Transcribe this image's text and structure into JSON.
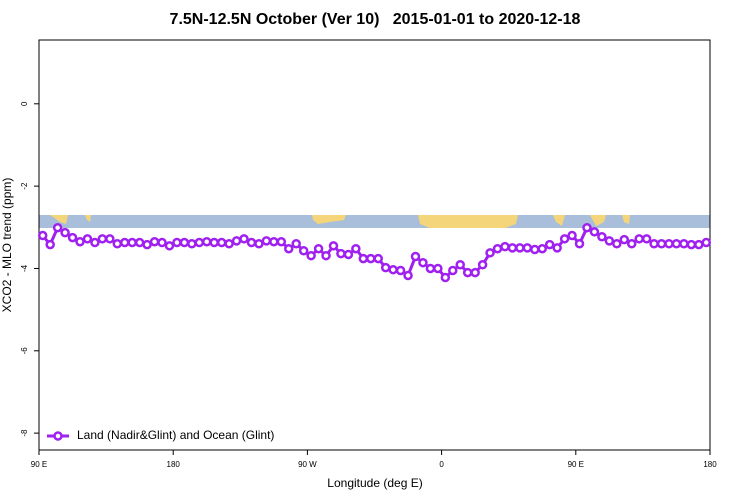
{
  "chart_data": {
    "type": "line",
    "title": "7.5N-12.5N October (Ver 10)   2015-01-01 to 2020-12-18",
    "x_label": "Longitude (deg E)",
    "y_label": "XCO2 - MLO trend (ppm)",
    "xlim": [
      90,
      540
    ],
    "ylim": [
      -8.41,
      1.55
    ],
    "xticks": [
      {
        "value": 90,
        "label": "90 E"
      },
      180,
      {
        "value": 270,
        "label": "90 W"
      },
      {
        "value": 360,
        "label": "0"
      },
      {
        "value": 450,
        "label": "90 E"
      },
      {
        "value": 540,
        "label": "180"
      }
    ],
    "yticks": [
      0,
      -2,
      -4,
      -6,
      -8
    ],
    "legend": "bottom-left",
    "x": [
      92.5,
      97.5,
      102.5,
      107.5,
      112.5,
      117.5,
      122.5,
      127.5,
      132.5,
      137.5,
      142.5,
      147.5,
      152.5,
      157.5,
      162.5,
      167.5,
      172.5,
      177.5,
      182.5,
      187.5,
      192.5,
      197.5,
      202.5,
      207.5,
      212.5,
      217.5,
      222.5,
      227.5,
      232.5,
      237.5,
      242.5,
      247.5,
      252.5,
      257.5,
      262.5,
      267.5,
      272.5,
      277.5,
      282.5,
      287.5,
      292.5,
      297.5,
      302.5,
      307.5,
      312.5,
      317.5,
      322.5,
      327.5,
      332.5,
      337.5,
      342.5,
      347.5,
      352.5,
      357.5,
      362.5,
      367.5,
      372.5,
      377.5,
      382.5,
      387.5,
      392.5,
      397.5,
      402.5,
      407.5,
      412.5,
      417.5,
      422.5,
      427.5,
      432.5,
      437.5,
      442.5,
      447.5,
      452.5,
      457.5,
      462.5,
      467.5,
      472.5,
      477.5,
      482.5,
      487.5,
      492.5,
      497.5,
      502.5,
      507.5,
      512.5,
      517.5,
      522.5,
      527.5,
      532.5,
      537.5
    ],
    "series": [
      {
        "name": "Land (Nadir&Glint) and Ocean (Glint)",
        "color": "#a020f0",
        "values": [
          -3.2,
          -3.42,
          -3.01,
          -3.13,
          -3.25,
          -3.35,
          -3.28,
          -3.37,
          -3.28,
          -3.28,
          -3.4,
          -3.37,
          -3.37,
          -3.37,
          -3.42,
          -3.35,
          -3.37,
          -3.45,
          -3.37,
          -3.37,
          -3.4,
          -3.37,
          -3.35,
          -3.37,
          -3.37,
          -3.4,
          -3.33,
          -3.28,
          -3.37,
          -3.4,
          -3.33,
          -3.35,
          -3.35,
          -3.52,
          -3.4,
          -3.57,
          -3.69,
          -3.52,
          -3.69,
          -3.45,
          -3.64,
          -3.66,
          -3.52,
          -3.76,
          -3.76,
          -3.76,
          -3.98,
          -4.03,
          -4.05,
          -4.17,
          -3.71,
          -3.86,
          -4.0,
          -4.0,
          -4.22,
          -4.05,
          -3.91,
          -4.1,
          -4.1,
          -3.91,
          -3.62,
          -3.52,
          -3.47,
          -3.5,
          -3.5,
          -3.5,
          -3.54,
          -3.52,
          -3.42,
          -3.5,
          -3.28,
          -3.2,
          -3.4,
          -3.01,
          -3.11,
          -3.23,
          -3.33,
          -3.4,
          -3.3,
          -3.4,
          -3.28,
          -3.28,
          -3.4,
          -3.4,
          -3.4,
          -3.4,
          -3.4,
          -3.42,
          -3.42,
          -3.37
        ]
      }
    ]
  }
}
